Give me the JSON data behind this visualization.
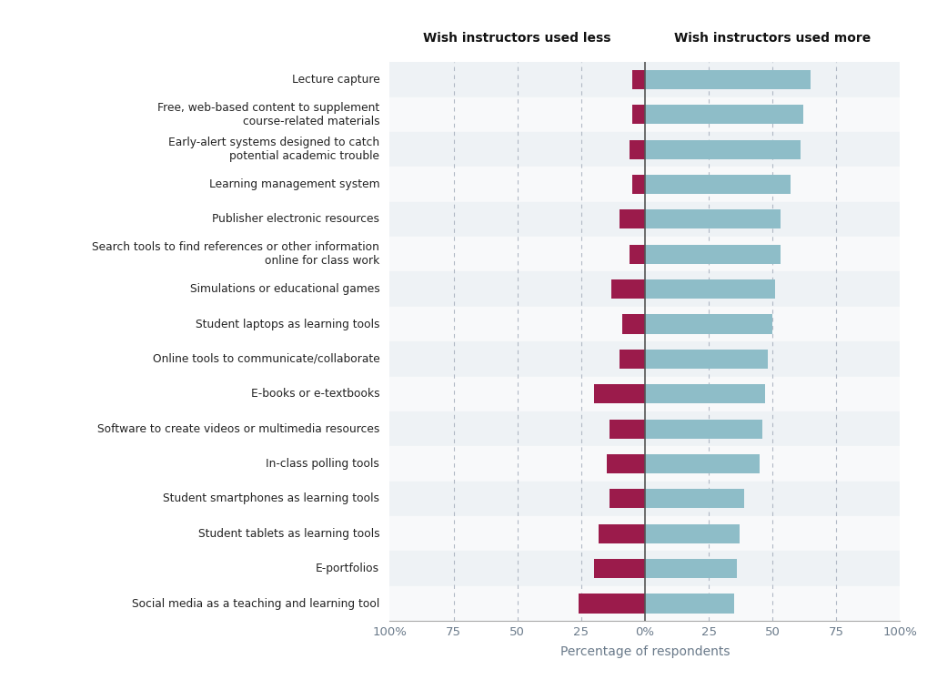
{
  "categories": [
    "Lecture capture",
    "Free, web-based content to supplement\ncourse-related materials",
    "Early-alert systems designed to catch\npotential academic trouble",
    "Learning management system",
    "Publisher electronic resources",
    "Search tools to find references or other information\nonline for class work",
    "Simulations or educational games",
    "Student laptops as learning tools",
    "Online tools to communicate/collaborate",
    "E-books or e-textbooks",
    "Software to create videos or multimedia resources",
    "In-class polling tools",
    "Student smartphones as learning tools",
    "Student tablets as learning tools",
    "E-portfolios",
    "Social media as a teaching and learning tool"
  ],
  "more_values": [
    65,
    62,
    61,
    57,
    53,
    53,
    51,
    50,
    48,
    47,
    46,
    45,
    39,
    37,
    36,
    35
  ],
  "less_values": [
    5,
    5,
    6,
    5,
    10,
    6,
    13,
    9,
    10,
    20,
    14,
    15,
    14,
    18,
    20,
    26
  ],
  "more_color": "#8ebdc8",
  "less_color": "#9b1b4b",
  "background_colors": [
    "#eef2f5",
    "#f8f9fa"
  ],
  "title_left": "Wish instructors used less",
  "title_right": "Wish instructors used more",
  "xlabel": "Percentage of respondents",
  "all_ticks": [
    -100,
    -75,
    -50,
    -25,
    0,
    25,
    50,
    75,
    100
  ],
  "tick_labels": [
    "100%",
    "75",
    "50",
    "25",
    "0%",
    "25",
    "50",
    "75",
    "100%"
  ]
}
